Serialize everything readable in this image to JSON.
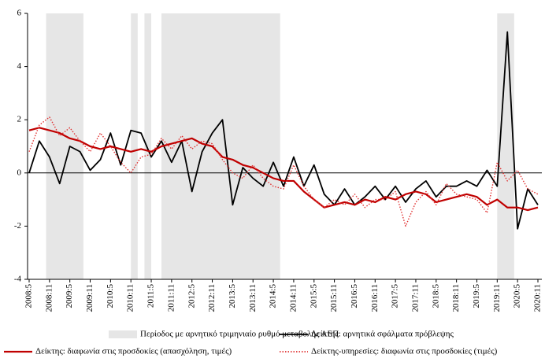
{
  "chart_data": {
    "type": "line",
    "categories": [
      "2008:5",
      null,
      "2008:11",
      null,
      "2009:5",
      null,
      "2009:11",
      null,
      "2010:5",
      null,
      "2010:11",
      null,
      "2011:5",
      null,
      "2011:11",
      null,
      "2012:5",
      null,
      "2012:11",
      null,
      "2013:5",
      null,
      "2013:11",
      null,
      "2014:5",
      null,
      "2014:11",
      null,
      "2015:5",
      null,
      "2015:11",
      null,
      "2016:5",
      null,
      "2016:11",
      null,
      "2017:5",
      null,
      "2017:11",
      null,
      "2018:5",
      null,
      "2018:11",
      null,
      "2019:5",
      null,
      "2019:11",
      null,
      "2020:5",
      null,
      "2020:11"
    ],
    "shaded": {
      "name": "Περίοδος με αρνητικό τριμηνιαίο ρυθμό μεταβολής ΑΕΠ",
      "color": "#e6e6e6",
      "periods": [
        {
          "start": "2008:10",
          "end": "2009:9"
        },
        {
          "start": "2010:11",
          "end": "2011:1"
        },
        {
          "start": "2011:3",
          "end": "2011:5"
        },
        {
          "start": "2011:8",
          "end": "2014:7"
        },
        {
          "start": "2019:11",
          "end": "2020:4"
        }
      ]
    },
    "series": [
      {
        "name": "Δείκτης: αρνητικά σφάλματα πρόβλεψης",
        "color": "#000000",
        "style": "solid",
        "values": [
          0,
          1.2,
          0.6,
          -0.4,
          1.0,
          0.8,
          0.1,
          0.5,
          1.5,
          0.3,
          1.6,
          1.5,
          0.6,
          1.2,
          0.4,
          1.2,
          -0.7,
          0.8,
          1.5,
          2.0,
          -1.2,
          0.2,
          -0.2,
          -0.5,
          0.4,
          -0.5,
          0.6,
          -0.5,
          0.3,
          -0.8,
          -1.2,
          -0.6,
          -1.2,
          -0.9,
          -0.5,
          -1.0,
          -0.5,
          -1.1,
          -0.6,
          -0.3,
          -0.9,
          -0.5,
          -0.5,
          -0.3,
          -0.5,
          0.1,
          -0.5,
          5.3,
          -2.1,
          -0.6,
          -1.2
        ]
      },
      {
        "name": "Δείκτης: διαφωνία στις προσδοκίες (απασχόληση, τιμές)",
        "color": "#c00000",
        "style": "solid",
        "values": [
          1.6,
          1.7,
          1.6,
          1.5,
          1.3,
          1.2,
          1.0,
          0.9,
          1.0,
          0.9,
          0.8,
          0.9,
          0.8,
          1.0,
          1.1,
          1.2,
          1.3,
          1.1,
          1.0,
          0.6,
          0.5,
          0.3,
          0.2,
          0.0,
          -0.2,
          -0.3,
          -0.3,
          -0.7,
          -1.0,
          -1.3,
          -1.2,
          -1.1,
          -1.2,
          -1.0,
          -1.1,
          -0.9,
          -1.0,
          -0.8,
          -0.7,
          -0.8,
          -1.1,
          -1.0,
          -0.9,
          -0.8,
          -0.9,
          -1.2,
          -1.0,
          -1.3,
          -1.3,
          -1.4,
          -1.3
        ]
      },
      {
        "name": "Δείκτης-υπηρεσίες: διαφωνία στις προσδοκίες (τιμές)",
        "color": "#e03030",
        "style": "dotted",
        "values": [
          0.8,
          1.8,
          2.1,
          1.4,
          1.7,
          1.2,
          0.8,
          1.5,
          1.0,
          0.4,
          0.0,
          0.6,
          0.7,
          1.3,
          0.9,
          1.4,
          0.9,
          1.2,
          1.1,
          0.5,
          0.0,
          -0.2,
          0.3,
          -0.2,
          -0.5,
          -0.6,
          0.3,
          -0.5,
          -1.0,
          -1.3,
          -1.0,
          -1.2,
          -0.8,
          -1.3,
          -1.0,
          -1.0,
          -0.7,
          -2.0,
          -1.1,
          -0.7,
          -1.2,
          -0.4,
          -0.8,
          -0.9,
          -1.0,
          -1.5,
          0.4,
          -0.3,
          0.1,
          -0.6,
          -0.8
        ]
      }
    ],
    "ylim": [
      -4,
      6
    ],
    "yticks": [
      -4,
      -2,
      0,
      2,
      4,
      6
    ]
  }
}
